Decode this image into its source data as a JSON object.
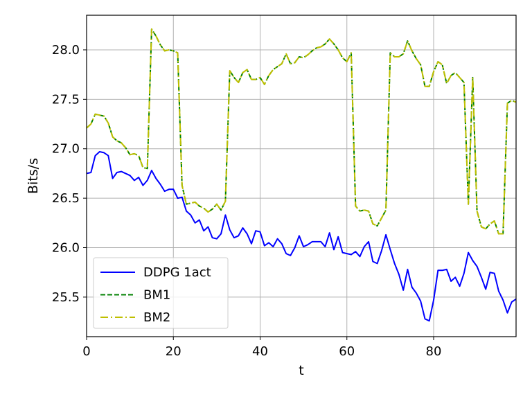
{
  "chart_data": {
    "type": "line",
    "xlabel": "t",
    "ylabel": "Bits/s",
    "xlim": [
      0,
      99
    ],
    "ylim": [
      25.1,
      28.35
    ],
    "xticks": [
      0,
      20,
      40,
      60,
      80
    ],
    "xtick_labels": [
      "0",
      "20",
      "40",
      "60",
      "80"
    ],
    "yticks": [
      25.5,
      26.0,
      26.5,
      27.0,
      27.5,
      28.0
    ],
    "ytick_labels": [
      "25.5",
      "26.0",
      "26.5",
      "27.0",
      "27.5",
      "28.0"
    ],
    "grid": true,
    "legend_position": "lower-left",
    "series": [
      {
        "name": "DDPG 1act",
        "color": "#0000ff",
        "style": "solid",
        "values": [
          26.75,
          26.76,
          26.93,
          26.97,
          26.96,
          26.93,
          26.7,
          26.76,
          26.77,
          26.75,
          26.73,
          26.68,
          26.71,
          26.63,
          26.68,
          26.78,
          26.7,
          26.64,
          26.57,
          26.59,
          26.59,
          26.5,
          26.51,
          26.37,
          26.33,
          26.25,
          26.28,
          26.17,
          26.21,
          26.1,
          26.09,
          26.14,
          26.33,
          26.18,
          26.1,
          26.12,
          26.2,
          26.14,
          26.04,
          26.17,
          26.16,
          26.02,
          26.05,
          26.01,
          26.09,
          26.04,
          25.94,
          25.92,
          26.0,
          26.12,
          26.01,
          26.03,
          26.06,
          26.06,
          26.06,
          26.01,
          26.15,
          25.98,
          26.11,
          25.95,
          25.94,
          25.93,
          25.96,
          25.91,
          26.01,
          26.06,
          25.86,
          25.84,
          25.97,
          26.13,
          25.98,
          25.84,
          25.73,
          25.57,
          25.78,
          25.6,
          25.54,
          25.46,
          25.28,
          25.26,
          25.47,
          25.77,
          25.77,
          25.78,
          25.66,
          25.7,
          25.61,
          25.74,
          25.95,
          25.87,
          25.81,
          25.7,
          25.58,
          25.75,
          25.74,
          25.56,
          25.47,
          25.34,
          25.45,
          25.48
        ]
      },
      {
        "name": "BM1",
        "color": "#008000",
        "style": "dashed",
        "values": [
          27.21,
          27.25,
          27.35,
          27.34,
          27.33,
          27.26,
          27.12,
          27.08,
          27.06,
          27.01,
          26.94,
          26.95,
          26.93,
          26.81,
          26.8,
          28.21,
          28.14,
          28.05,
          27.99,
          28.0,
          27.99,
          27.97,
          26.63,
          26.44,
          26.45,
          26.46,
          26.42,
          26.4,
          26.36,
          26.39,
          26.44,
          26.38,
          26.47,
          27.79,
          27.72,
          27.67,
          27.77,
          27.8,
          27.7,
          27.7,
          27.72,
          27.65,
          27.74,
          27.8,
          27.83,
          27.86,
          27.96,
          27.86,
          27.87,
          27.93,
          27.92,
          27.95,
          27.99,
          28.02,
          28.03,
          28.06,
          28.11,
          28.06,
          28.0,
          27.92,
          27.88,
          27.97,
          26.42,
          26.37,
          26.38,
          26.37,
          26.24,
          26.22,
          26.3,
          26.38,
          27.97,
          27.93,
          27.93,
          27.96,
          28.09,
          27.99,
          27.91,
          27.85,
          27.63,
          27.63,
          27.78,
          27.88,
          27.85,
          27.66,
          27.74,
          27.77,
          27.72,
          27.67,
          26.44,
          27.72,
          26.37,
          26.21,
          26.19,
          26.24,
          26.27,
          26.14,
          26.14,
          27.46,
          27.49,
          27.47
        ]
      },
      {
        "name": "BM2",
        "color": "#bfbf00",
        "style": "dashdot",
        "values": [
          27.21,
          27.25,
          27.35,
          27.34,
          27.33,
          27.26,
          27.12,
          27.08,
          27.06,
          27.01,
          26.94,
          26.95,
          26.93,
          26.81,
          26.8,
          28.21,
          28.14,
          28.05,
          27.99,
          28.0,
          27.99,
          27.97,
          26.63,
          26.44,
          26.45,
          26.46,
          26.42,
          26.4,
          26.36,
          26.39,
          26.44,
          26.38,
          26.47,
          27.79,
          27.72,
          27.67,
          27.77,
          27.8,
          27.7,
          27.7,
          27.72,
          27.65,
          27.74,
          27.8,
          27.83,
          27.86,
          27.96,
          27.86,
          27.87,
          27.93,
          27.92,
          27.95,
          27.99,
          28.02,
          28.03,
          28.06,
          28.11,
          28.06,
          28.0,
          27.92,
          27.88,
          27.97,
          26.42,
          26.37,
          26.38,
          26.37,
          26.24,
          26.22,
          26.3,
          26.38,
          27.97,
          27.93,
          27.93,
          27.96,
          28.09,
          27.99,
          27.91,
          27.85,
          27.63,
          27.63,
          27.78,
          27.88,
          27.85,
          27.66,
          27.74,
          27.77,
          27.72,
          27.67,
          26.44,
          27.72,
          26.37,
          26.21,
          26.19,
          26.24,
          26.27,
          26.14,
          26.14,
          27.46,
          27.49,
          27.47
        ]
      }
    ]
  }
}
